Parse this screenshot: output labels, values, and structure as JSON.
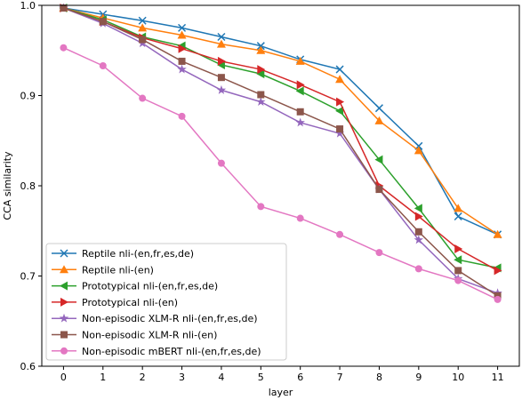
{
  "chart_data": {
    "type": "line",
    "title": "",
    "xlabel": "layer",
    "ylabel": "CCA similarity",
    "x": [
      0,
      1,
      2,
      3,
      4,
      5,
      6,
      7,
      8,
      9,
      10,
      11
    ],
    "xticks": [
      "0",
      "1",
      "2",
      "3",
      "4",
      "5",
      "6",
      "7",
      "8",
      "9",
      "10",
      "11"
    ],
    "yticks": [
      "0.6",
      "0.7",
      "0.8",
      "0.9",
      "1.0"
    ],
    "xlim": [
      -0.55,
      11.55
    ],
    "ylim": [
      0.6,
      1.0
    ],
    "grid": false,
    "legend_position": "lower-left",
    "series": [
      {
        "name": "Reptile nli-(en,fr,es,de)",
        "color": "#1f77b4",
        "marker": "x",
        "values": [
          0.997,
          0.99,
          0.983,
          0.975,
          0.965,
          0.955,
          0.94,
          0.929,
          0.886,
          0.844,
          0.766,
          0.746
        ]
      },
      {
        "name": "Reptile nli-(en)",
        "color": "#ff7f0e",
        "marker": "triangle-up",
        "values": [
          0.997,
          0.986,
          0.975,
          0.967,
          0.957,
          0.95,
          0.938,
          0.918,
          0.872,
          0.839,
          0.775,
          0.746
        ]
      },
      {
        "name": "Prototypical nli-(en,fr,es,de)",
        "color": "#2ca02c",
        "marker": "triangle-left",
        "values": [
          0.997,
          0.984,
          0.965,
          0.955,
          0.934,
          0.924,
          0.905,
          0.883,
          0.829,
          0.775,
          0.718,
          0.709
        ]
      },
      {
        "name": "Prototypical nli-(en)",
        "color": "#d62728",
        "marker": "triangle-right",
        "values": [
          0.997,
          0.982,
          0.964,
          0.952,
          0.938,
          0.929,
          0.912,
          0.893,
          0.8,
          0.766,
          0.73,
          0.706
        ]
      },
      {
        "name": "Non-episodic XLM-R nli-(en,fr,es,de)",
        "color": "#9467bd",
        "marker": "star",
        "values": [
          0.997,
          0.98,
          0.958,
          0.929,
          0.906,
          0.893,
          0.87,
          0.858,
          0.796,
          0.74,
          0.697,
          0.681
        ]
      },
      {
        "name": "Non-episodic XLM-R nli-(en)",
        "color": "#8c564b",
        "marker": "square",
        "values": [
          0.997,
          0.982,
          0.962,
          0.938,
          0.92,
          0.901,
          0.882,
          0.863,
          0.796,
          0.749,
          0.706,
          0.678
        ]
      },
      {
        "name": "Non-episodic mBERT nli-(en,fr,es,de)",
        "color": "#e377c2",
        "marker": "circle",
        "values": [
          0.953,
          0.933,
          0.897,
          0.877,
          0.825,
          0.777,
          0.764,
          0.746,
          0.726,
          0.708,
          0.695,
          0.674
        ]
      }
    ]
  }
}
